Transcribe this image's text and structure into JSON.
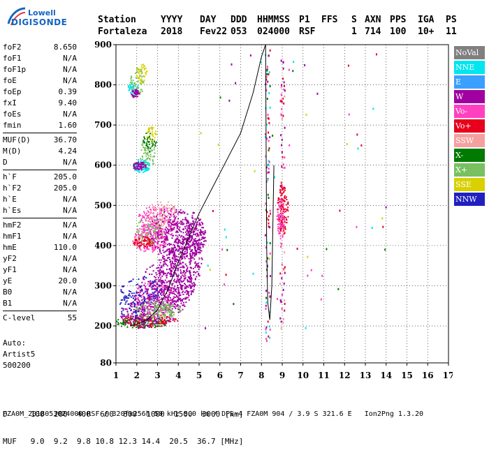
{
  "logo": {
    "line1": "Lowell",
    "line2": "DIGISONDE"
  },
  "header": {
    "labels": [
      "Station",
      "YYYY",
      "DAY",
      "DDD",
      "HHMMSS",
      "P1",
      "FFS",
      "S",
      "AXN",
      "PPS",
      "IGA",
      "PS"
    ],
    "values": [
      "Fortaleza",
      "2018",
      "Fev22",
      "053",
      "024000",
      "RSF",
      "",
      "1",
      "714",
      "100",
      "10+",
      "11"
    ]
  },
  "params": {
    "group1": [
      {
        "k": "foF2",
        "v": "8.650"
      },
      {
        "k": "foF1",
        "v": "N/A"
      },
      {
        "k": "foF1p",
        "v": "N/A"
      },
      {
        "k": "foE",
        "v": "N/A"
      },
      {
        "k": "foEp",
        "v": "0.39"
      },
      {
        "k": "fxI",
        "v": "9.40"
      },
      {
        "k": "foEs",
        "v": "N/A"
      },
      {
        "k": "fmin",
        "v": "1.60"
      }
    ],
    "group2": [
      {
        "k": "MUF(D)",
        "v": "36.70"
      },
      {
        "k": "M(D)",
        "v": "4.24"
      },
      {
        "k": "D",
        "v": "N/A"
      }
    ],
    "group3": [
      {
        "k": "h`F",
        "v": "205.0"
      },
      {
        "k": "h`F2",
        "v": "205.0"
      },
      {
        "k": "h`E",
        "v": "N/A"
      },
      {
        "k": "h`Es",
        "v": "N/A"
      }
    ],
    "group4": [
      {
        "k": "hmF2",
        "v": "N/A"
      },
      {
        "k": "hmF1",
        "v": "N/A"
      },
      {
        "k": "hmE",
        "v": "110.0"
      },
      {
        "k": "yF2",
        "v": "N/A"
      },
      {
        "k": "yF1",
        "v": "N/A"
      },
      {
        "k": "yE",
        "v": "20.0"
      },
      {
        "k": "B0",
        "v": "N/A"
      },
      {
        "k": "B1",
        "v": "N/A"
      }
    ],
    "group5": [
      {
        "k": "C-level",
        "v": "55"
      }
    ]
  },
  "auto": [
    "Auto:",
    "Artist5",
    "500200"
  ],
  "legend": [
    {
      "label": "NoVal",
      "color": "#808080"
    },
    {
      "label": "NNE",
      "color": "#00e5ee"
    },
    {
      "label": "E",
      "color": "#3aa0ff"
    },
    {
      "label": "W",
      "color": "#a000a0"
    },
    {
      "label": "Vo-",
      "color": "#ff40c0"
    },
    {
      "label": "Vo+",
      "color": "#e8001c"
    },
    {
      "label": "SSW",
      "color": "#f5a0a0"
    },
    {
      "label": "X-",
      "color": "#007a00"
    },
    {
      "label": "X+",
      "color": "#78c060"
    },
    {
      "label": "SSE",
      "color": "#d8d000"
    },
    {
      "label": "NNW",
      "color": "#2020c0"
    }
  ],
  "conversion": {
    "row1": "D     100  200  400  600  800  1000  1500  3000 [km]",
    "row2": "MUF   9.0  9.2  9.8 10.8 12.3 14.4  20.5  36.7 [MHz]"
  },
  "footer": "FZA0M_2018053024000.RSF / 320fx256h 50 kHz 5.0 km / DPS-4 FZA0M 904 / 3.9 S 321.6 E   Ion2Png 1.3.20",
  "chart_data": {
    "type": "scatter",
    "title": "",
    "xlabel": "",
    "ylabel": "",
    "xlim": [
      1,
      17
    ],
    "ylim": [
      80,
      900
    ],
    "xticks": [
      1,
      2,
      3,
      4,
      5,
      6,
      7,
      8,
      9,
      10,
      11,
      12,
      13,
      14,
      15,
      16,
      17
    ],
    "yticks": [
      80,
      200,
      300,
      400,
      500,
      600,
      700,
      800,
      900
    ],
    "grid": "dotted",
    "profile_line": {
      "x": [
        1.7,
        2.0,
        2.5,
        3.0,
        3.5,
        4.0,
        5.0,
        6.0,
        7.0,
        7.6,
        8.0,
        8.2,
        8.25,
        8.3,
        8.4,
        8.5,
        8.6
      ],
      "y": [
        200,
        205,
        215,
        240,
        290,
        360,
        480,
        580,
        680,
        780,
        870,
        900,
        400,
        260,
        215,
        300,
        600
      ]
    },
    "clusters": [
      {
        "name": "W",
        "x": [
          1.3,
          2.5,
          3.0,
          4.0,
          4.6,
          5.0
        ],
        "y": [
          200,
          260,
          330,
          420,
          440,
          420
        ]
      },
      {
        "name": "Vo-",
        "x": [
          2.3,
          2.8,
          3.2,
          3.6,
          4.0,
          4.5
        ],
        "y": [
          400,
          440,
          480,
          420,
          380,
          420
        ]
      },
      {
        "name": "Vo+",
        "x": [
          1.9,
          2.2,
          2.5,
          2.8,
          8.8,
          9.0
        ],
        "y": [
          410,
          420,
          430,
          460,
          480,
          520
        ]
      },
      {
        "name": "X-",
        "x": [
          1.7,
          2.0,
          2.4,
          2.8,
          3.0
        ],
        "y": [
          205,
          210,
          215,
          225,
          240
        ]
      },
      {
        "name": "X+",
        "x": [
          1.8,
          2.2,
          2.6,
          3.2,
          3.4
        ],
        "y": [
          590,
          600,
          620,
          680,
          690
        ]
      }
    ]
  }
}
